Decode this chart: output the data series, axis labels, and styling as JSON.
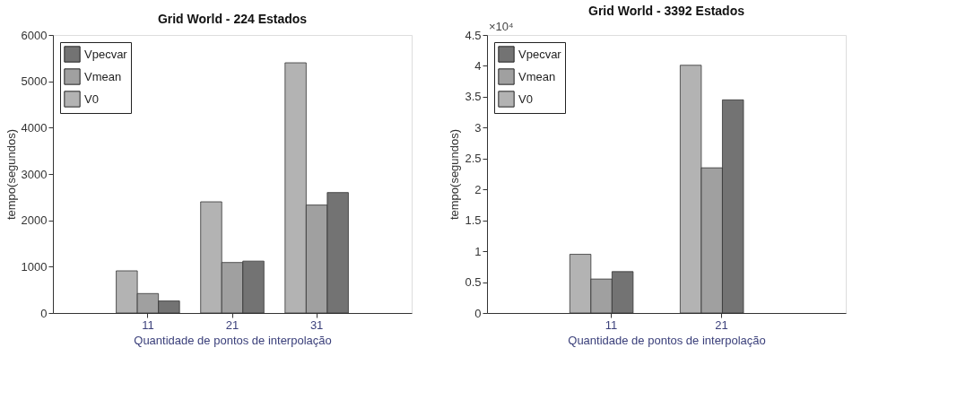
{
  "chart_data": [
    {
      "type": "bar",
      "title": "Grid World - 224 Estados",
      "xlabel": "Quantidade de pontos de interpolação",
      "ylabel": "tempo(segundos)",
      "categories": [
        "11",
        "21",
        "31"
      ],
      "series": [
        {
          "name": "V0",
          "color": "#b3b3b3",
          "values": [
            910,
            2400,
            5400
          ]
        },
        {
          "name": "Vmean",
          "color": "#a0a0a0",
          "values": [
            420,
            1090,
            2330
          ]
        },
        {
          "name": "Vpecvar",
          "color": "#737373",
          "values": [
            260,
            1120,
            2600
          ]
        }
      ],
      "ylim": [
        0,
        6000
      ],
      "yticks": [
        0,
        1000,
        2000,
        3000,
        4000,
        5000,
        6000
      ],
      "grid": false,
      "legend": "top left"
    },
    {
      "type": "bar",
      "title": "Grid World - 3392 Estados",
      "xlabel": "Quantidade de pontos de interpolação",
      "ylabel": "tempo(segundos)",
      "categories": [
        "11",
        "21"
      ],
      "series": [
        {
          "name": "V0",
          "color": "#b3b3b3",
          "values": [
            0.95,
            4.01
          ]
        },
        {
          "name": "Vmean",
          "color": "#a0a0a0",
          "values": [
            0.55,
            2.35
          ]
        },
        {
          "name": "Vpecvar",
          "color": "#737373",
          "values": [
            0.67,
            3.45
          ]
        }
      ],
      "ylim": [
        0,
        4.5
      ],
      "yticks": [
        0,
        0.5,
        1,
        1.5,
        2,
        2.5,
        3,
        3.5,
        4,
        4.5
      ],
      "grid": false,
      "legend": "top left",
      "annotations": [
        "×10⁴"
      ]
    }
  ]
}
